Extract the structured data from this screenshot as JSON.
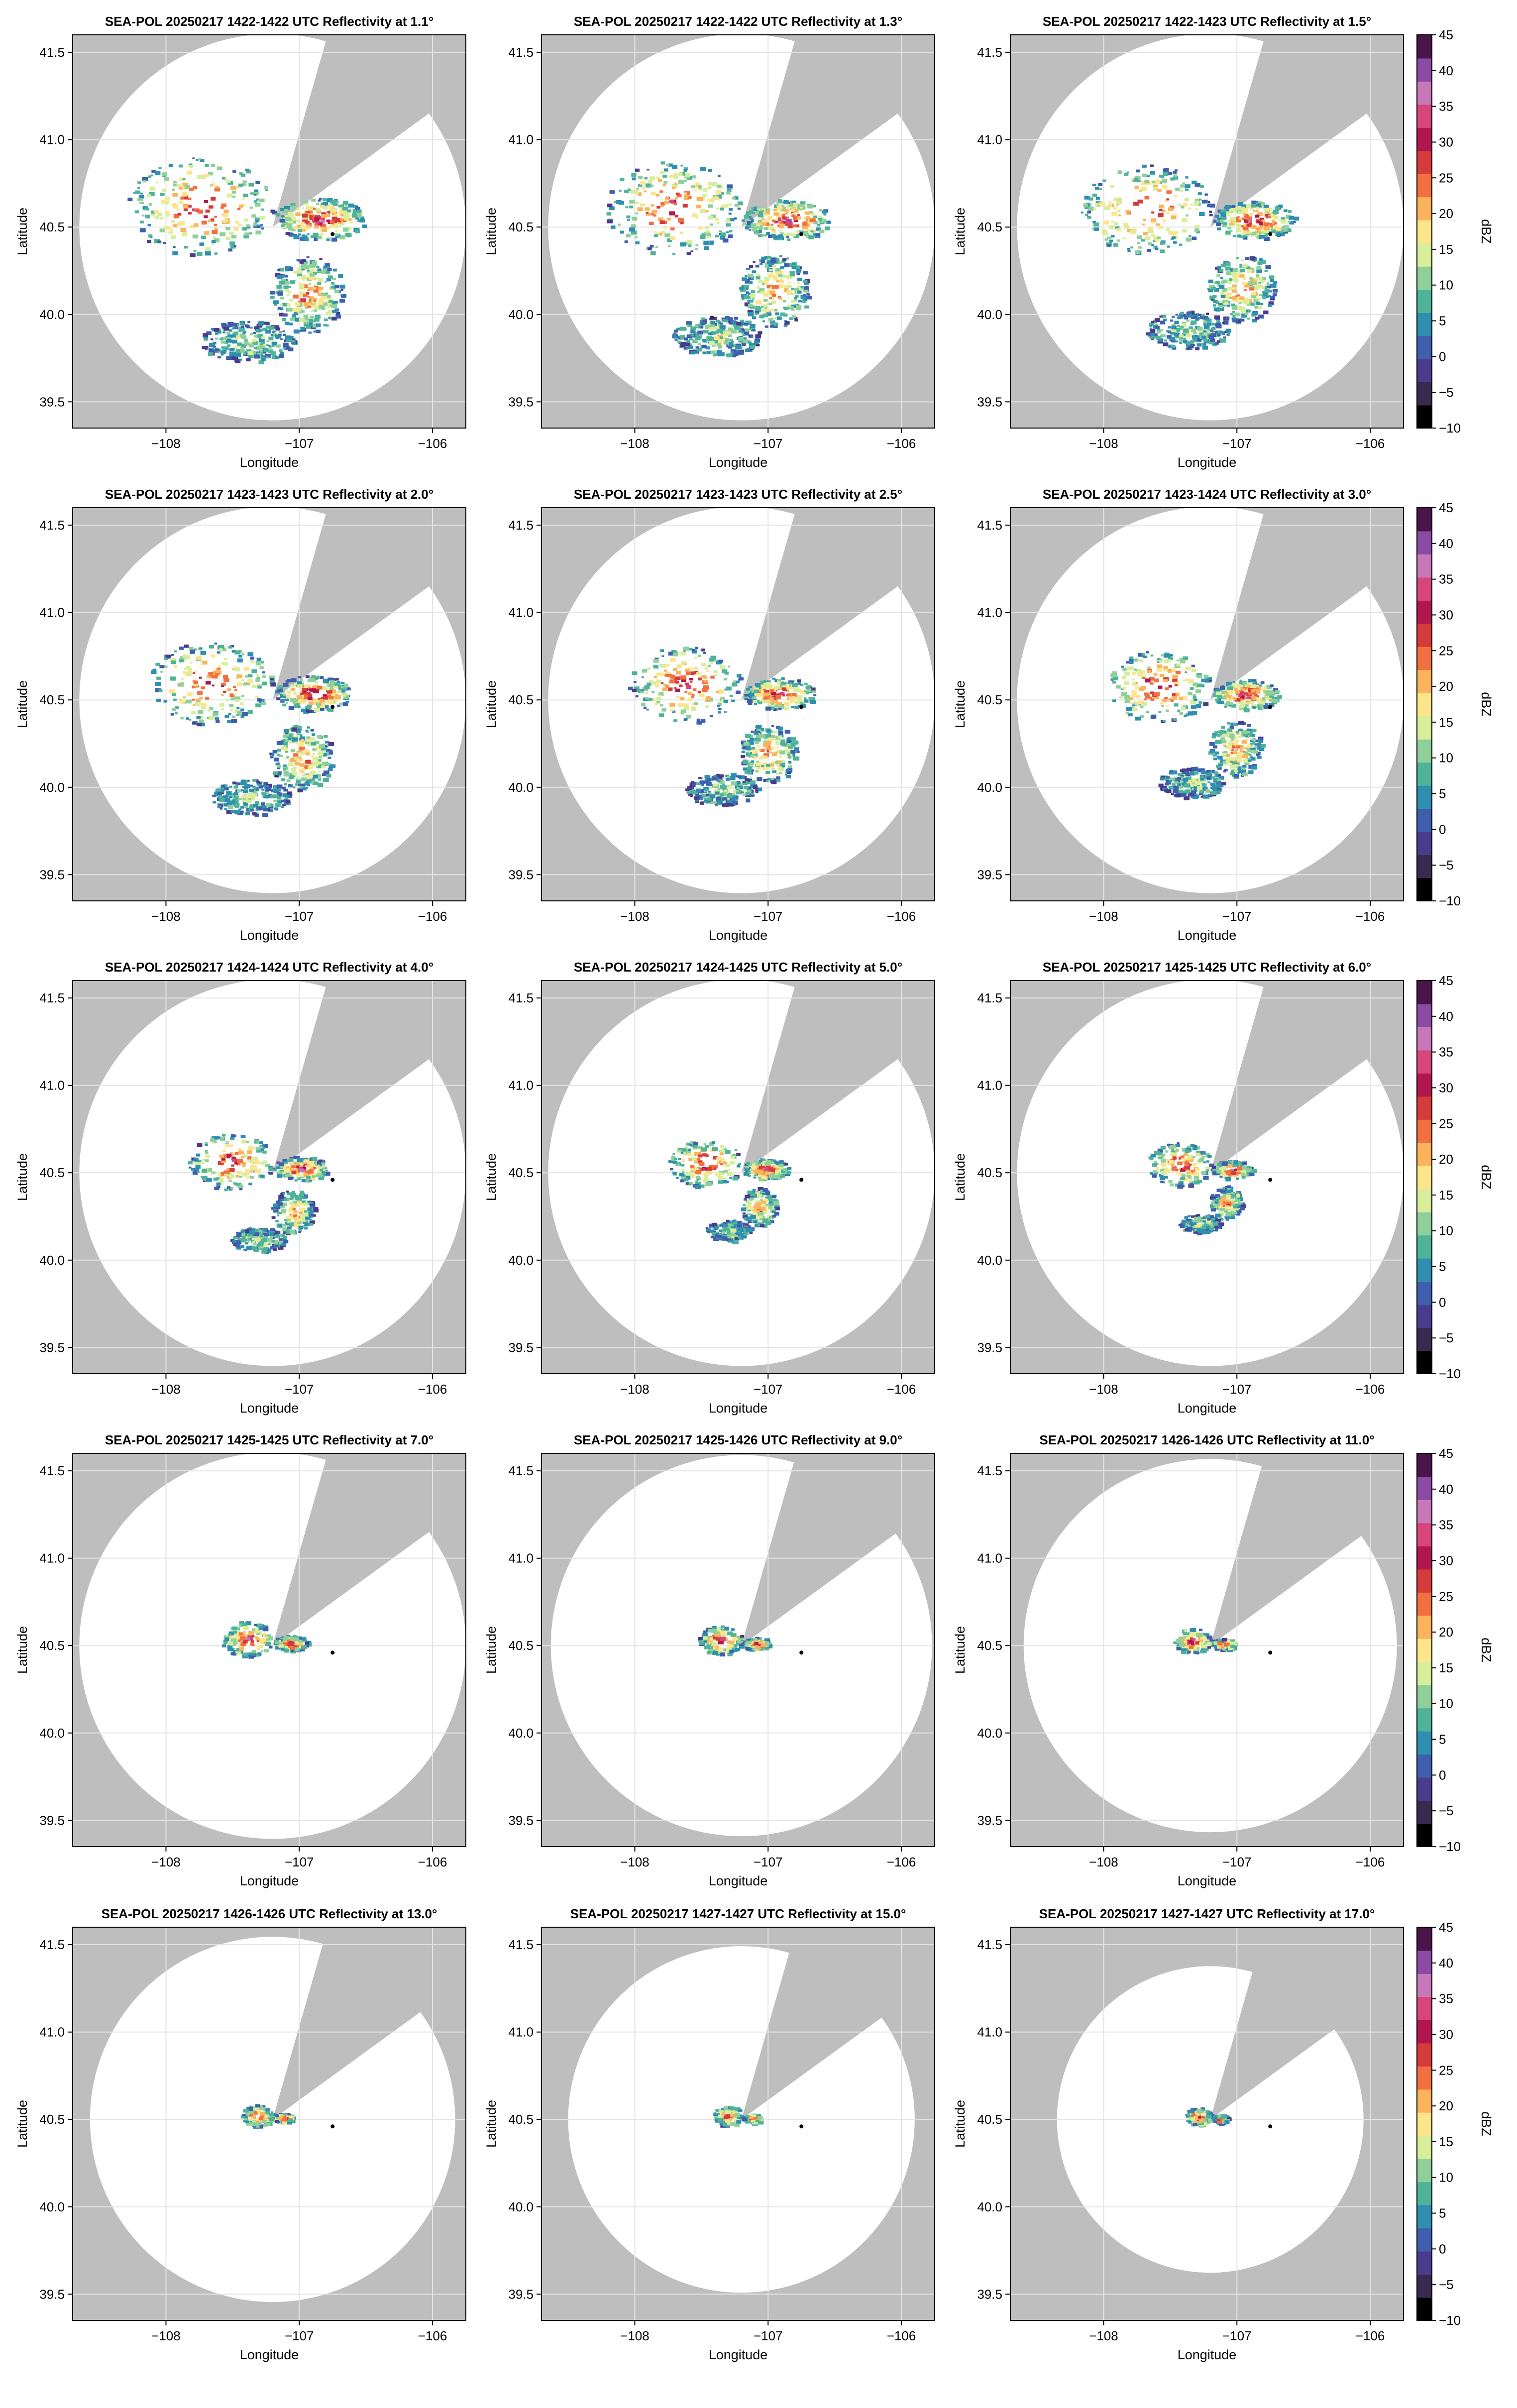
{
  "figure": {
    "xlabel": "Longitude",
    "ylabel": "Latitude",
    "xticks": [
      -108,
      -107,
      -106
    ],
    "xtick_labels": [
      "−108",
      "−107",
      "−106"
    ],
    "yticks": [
      39.5,
      40.0,
      40.5,
      41.0,
      41.5
    ],
    "ytick_labels": [
      "39.5",
      "40.0",
      "40.5",
      "41.0",
      "41.5"
    ],
    "xlim": [
      -108.7,
      -105.75
    ],
    "ylim": [
      39.35,
      41.6
    ],
    "radar_lon": -107.2,
    "radar_lat": 40.5,
    "site_marker": {
      "lon": -106.75,
      "lat": 40.46
    },
    "colorbar": {
      "label": "dBZ",
      "ticks": [
        -10,
        -5,
        0,
        5,
        10,
        15,
        20,
        25,
        30,
        35,
        40,
        45
      ],
      "tick_labels": [
        "−10",
        "−5",
        "0",
        "5",
        "10",
        "15",
        "20",
        "25",
        "30",
        "35",
        "40",
        "45"
      ],
      "vmin": -10,
      "vmax": 45,
      "colors": [
        "#000000",
        "#3b2a4f",
        "#4b3b8c",
        "#3f5fae",
        "#2f8fb0",
        "#4fb39a",
        "#8fd09a",
        "#d8ee9a",
        "#fde58c",
        "#fbb45c",
        "#f2703f",
        "#d63a3a",
        "#b3154e",
        "#d8457a",
        "#c778b8",
        "#8b4aa3",
        "#4a1548"
      ]
    },
    "colors": {
      "blocked": "#bebebe",
      "coverage": "#ffffff",
      "grid": "#e4e4e4",
      "frame": "#000000"
    }
  },
  "chart_data": [
    {
      "type": "heatmap",
      "title": "SEA-POL 20250217 1422-1422 UTC Reflectivity at 1.1°",
      "elevation_deg": 1.1,
      "coverage_radius_deg": 1.45,
      "echo_extent": 1.0
    },
    {
      "type": "heatmap",
      "title": "SEA-POL 20250217 1422-1422 UTC Reflectivity at 1.3°",
      "elevation_deg": 1.3,
      "coverage_radius_deg": 1.45,
      "echo_extent": 0.95
    },
    {
      "type": "heatmap",
      "title": "SEA-POL 20250217 1422-1423 UTC Reflectivity at 1.5°",
      "elevation_deg": 1.5,
      "coverage_radius_deg": 1.45,
      "echo_extent": 0.9
    },
    {
      "type": "heatmap",
      "title": "SEA-POL 20250217 1423-1423 UTC Reflectivity at 2.0°",
      "elevation_deg": 2.0,
      "coverage_radius_deg": 1.45,
      "echo_extent": 0.85
    },
    {
      "type": "heatmap",
      "title": "SEA-POL 20250217 1423-1423 UTC Reflectivity at 2.5°",
      "elevation_deg": 2.5,
      "coverage_radius_deg": 1.45,
      "echo_extent": 0.78
    },
    {
      "type": "heatmap",
      "title": "SEA-POL 20250217 1423-1424 UTC Reflectivity at 3.0°",
      "elevation_deg": 3.0,
      "coverage_radius_deg": 1.45,
      "echo_extent": 0.72
    },
    {
      "type": "heatmap",
      "title": "SEA-POL 20250217 1424-1424 UTC Reflectivity at 4.0°",
      "elevation_deg": 4.0,
      "coverage_radius_deg": 1.45,
      "echo_extent": 0.58
    },
    {
      "type": "heatmap",
      "title": "SEA-POL 20250217 1424-1425 UTC Reflectivity at 5.0°",
      "elevation_deg": 5.0,
      "coverage_radius_deg": 1.45,
      "echo_extent": 0.5
    },
    {
      "type": "heatmap",
      "title": "SEA-POL 20250217 1425-1425 UTC Reflectivity at 6.0°",
      "elevation_deg": 6.0,
      "coverage_radius_deg": 1.45,
      "echo_extent": 0.44
    },
    {
      "type": "heatmap",
      "title": "SEA-POL 20250217 1425-1425 UTC Reflectivity at 7.0°",
      "elevation_deg": 7.0,
      "coverage_radius_deg": 1.45,
      "echo_extent": 0.36
    },
    {
      "type": "heatmap",
      "title": "SEA-POL 20250217 1425-1426 UTC Reflectivity at 9.0°",
      "elevation_deg": 9.0,
      "coverage_radius_deg": 1.43,
      "echo_extent": 0.3
    },
    {
      "type": "heatmap",
      "title": "SEA-POL 20250217 1426-1426 UTC Reflectivity at 11.0°",
      "elevation_deg": 11.0,
      "coverage_radius_deg": 1.4,
      "echo_extent": 0.26
    },
    {
      "type": "heatmap",
      "title": "SEA-POL 20250217 1426-1426 UTC Reflectivity at 13.0°",
      "elevation_deg": 13.0,
      "coverage_radius_deg": 1.37,
      "echo_extent": 0.22
    },
    {
      "type": "heatmap",
      "title": "SEA-POL 20250217 1427-1427 UTC Reflectivity at 15.0°",
      "elevation_deg": 15.0,
      "coverage_radius_deg": 1.3,
      "echo_extent": 0.2
    },
    {
      "type": "heatmap",
      "title": "SEA-POL 20250217 1427-1427 UTC Reflectivity at 17.0°",
      "elevation_deg": 17.0,
      "coverage_radius_deg": 1.15,
      "echo_extent": 0.18
    }
  ]
}
